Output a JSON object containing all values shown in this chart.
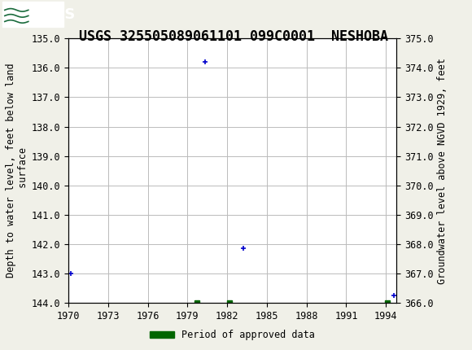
{
  "title": "USGS 325505089061101 099C0001  NESHOBA",
  "ylabel_left": "Depth to water level, feet below land\n surface",
  "ylabel_right": "Groundwater level above NGVD 1929, feet",
  "ylim_left": [
    135.0,
    144.0
  ],
  "ylim_right": [
    375.0,
    366.0
  ],
  "xlim": [
    1970,
    1994.8
  ],
  "xticks": [
    1970,
    1973,
    1976,
    1979,
    1982,
    1985,
    1988,
    1991,
    1994
  ],
  "yticks_left": [
    135.0,
    136.0,
    137.0,
    138.0,
    139.0,
    140.0,
    141.0,
    142.0,
    143.0,
    144.0
  ],
  "yticks_right": [
    375.0,
    374.0,
    373.0,
    372.0,
    371.0,
    370.0,
    369.0,
    368.0,
    367.0,
    366.0
  ],
  "blue_points_x": [
    1970.2,
    1980.3,
    1983.2,
    1994.6
  ],
  "blue_points_y": [
    143.0,
    135.8,
    142.15,
    143.75
  ],
  "green_points_x": [
    1979.7,
    1982.2,
    1994.1
  ],
  "green_points_y": [
    144.0,
    144.0,
    144.0
  ],
  "blue_color": "#0000cc",
  "green_color": "#006600",
  "bg_color": "#f0f0e8",
  "plot_bg_color": "#ffffff",
  "header_color": "#1a6b3c",
  "grid_color": "#bbbbbb",
  "title_fontsize": 12,
  "axis_label_fontsize": 8.5,
  "tick_fontsize": 8.5,
  "legend_label": "Period of approved data"
}
